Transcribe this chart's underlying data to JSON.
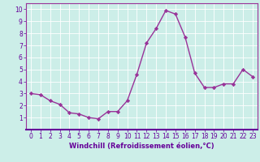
{
  "x": [
    0,
    1,
    2,
    3,
    4,
    5,
    6,
    7,
    8,
    9,
    10,
    11,
    12,
    13,
    14,
    15,
    16,
    17,
    18,
    19,
    20,
    21,
    22,
    23
  ],
  "y": [
    3.0,
    2.9,
    2.4,
    2.1,
    1.4,
    1.3,
    1.0,
    0.9,
    1.5,
    1.5,
    2.4,
    4.6,
    7.2,
    8.4,
    9.9,
    9.6,
    7.7,
    4.7,
    3.5,
    3.5,
    3.8,
    3.8,
    5.0,
    4.4
  ],
  "line_color": "#993399",
  "marker": "D",
  "marker_size": 2.2,
  "linewidth": 1.0,
  "xlabel": "Windchill (Refroidissement éolien,°C)",
  "xlabel_color": "#660099",
  "xlabel_fontsize": 6.0,
  "tick_color": "#660099",
  "tick_fontsize": 5.5,
  "xlim": [
    -0.5,
    23.5
  ],
  "ylim": [
    0,
    10.5
  ],
  "yticks": [
    1,
    2,
    3,
    4,
    5,
    6,
    7,
    8,
    9,
    10
  ],
  "xticks": [
    0,
    1,
    2,
    3,
    4,
    5,
    6,
    7,
    8,
    9,
    10,
    11,
    12,
    13,
    14,
    15,
    16,
    17,
    18,
    19,
    20,
    21,
    22,
    23
  ],
  "bg_color": "#cceee8",
  "grid_color": "#ffffff",
  "spine_color": "#993399",
  "bottom_spine_color": "#660099"
}
